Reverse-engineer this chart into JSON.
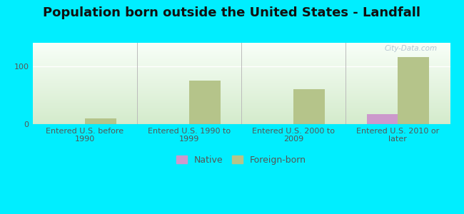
{
  "title": "Population born outside the United States - Landfall",
  "categories": [
    "Entered U.S. before\n1990",
    "Entered U.S. 1990 to\n1999",
    "Entered U.S. 2000 to\n2009",
    "Entered U.S. 2010 or\nlater"
  ],
  "native_values": [
    0,
    0,
    0,
    17
  ],
  "foreign_values": [
    10,
    75,
    60,
    115
  ],
  "native_color": "#cc99cc",
  "foreign_color": "#b5c48a",
  "outer_bg": "#00eeff",
  "ylim": [
    0,
    140
  ],
  "yticks": [
    0,
    100
  ],
  "bar_width": 0.3,
  "title_fontsize": 13,
  "tick_fontsize": 8,
  "legend_fontsize": 9,
  "watermark": "City-Data.com"
}
